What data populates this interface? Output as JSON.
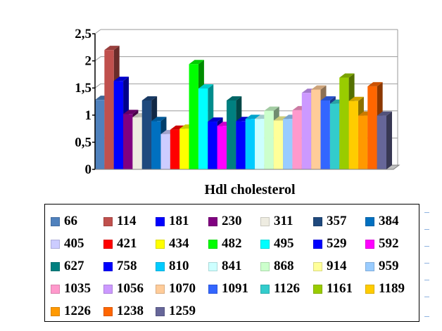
{
  "chart_data": {
    "type": "bar",
    "style": "3d-clustered",
    "xlabel": "Hdl cholesterol",
    "ylabel": "",
    "ylim": [
      0,
      2.5
    ],
    "yticks": [
      "0",
      "0,5",
      "1",
      "1,5",
      "2",
      "2,5"
    ],
    "grid": true,
    "legend_position": "bottom",
    "series": [
      {
        "name": "66",
        "value": 1.28,
        "color": "#4f81bd"
      },
      {
        "name": "114",
        "value": 2.2,
        "color": "#c0504d"
      },
      {
        "name": "181",
        "value": 1.63,
        "color": "#0000ff"
      },
      {
        "name": "230",
        "value": 1.02,
        "color": "#800080"
      },
      {
        "name": "311",
        "value": 0.96,
        "color": "#eeece1"
      },
      {
        "name": "357",
        "value": 1.27,
        "color": "#1f497d"
      },
      {
        "name": "384",
        "value": 0.89,
        "color": "#0070c0"
      },
      {
        "name": "405",
        "value": 0.65,
        "color": "#ccccff"
      },
      {
        "name": "421",
        "value": 0.73,
        "color": "#ff0000"
      },
      {
        "name": "434",
        "value": 0.75,
        "color": "#ffff00"
      },
      {
        "name": "482",
        "value": 1.94,
        "color": "#00ff00"
      },
      {
        "name": "495",
        "value": 1.49,
        "color": "#00ffff"
      },
      {
        "name": "529",
        "value": 0.88,
        "color": "#0000ff"
      },
      {
        "name": "592",
        "value": 0.8,
        "color": "#ff00ff"
      },
      {
        "name": "627",
        "value": 1.27,
        "color": "#008080"
      },
      {
        "name": "758",
        "value": 0.89,
        "color": "#0000ff"
      },
      {
        "name": "810",
        "value": 0.93,
        "color": "#00ccff"
      },
      {
        "name": "841",
        "value": 0.93,
        "color": "#ccffff"
      },
      {
        "name": "868",
        "value": 1.08,
        "color": "#ccffcc"
      },
      {
        "name": "914",
        "value": 0.9,
        "color": "#ffff99"
      },
      {
        "name": "959",
        "value": 0.93,
        "color": "#99ccff"
      },
      {
        "name": "1035",
        "value": 1.09,
        "color": "#ff99cc"
      },
      {
        "name": "1056",
        "value": 1.41,
        "color": "#cc99ff"
      },
      {
        "name": "1070",
        "value": 1.47,
        "color": "#ffcc99"
      },
      {
        "name": "1091",
        "value": 1.27,
        "color": "#3366ff"
      },
      {
        "name": "1126",
        "value": 1.21,
        "color": "#33cccc"
      },
      {
        "name": "1161",
        "value": 1.69,
        "color": "#99cc00"
      },
      {
        "name": "1189",
        "value": 1.26,
        "color": "#ffcc00"
      },
      {
        "name": "1226",
        "value": 0.99,
        "color": "#ff9900"
      },
      {
        "name": "1238",
        "value": 1.53,
        "color": "#ff6600"
      },
      {
        "name": "1259",
        "value": 0.99,
        "color": "#666699"
      }
    ]
  }
}
